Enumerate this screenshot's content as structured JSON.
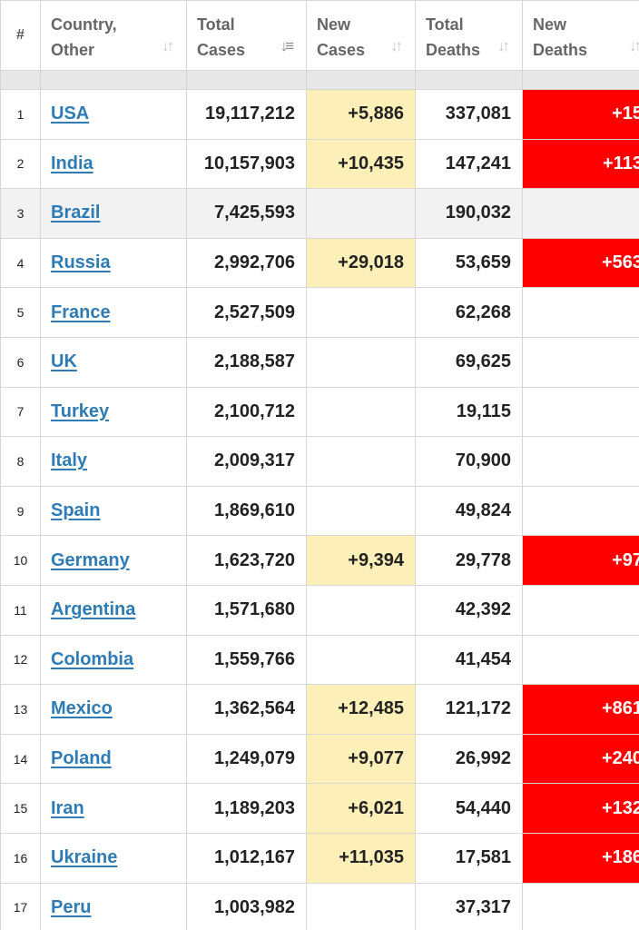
{
  "headers": {
    "num": "#",
    "country": [
      "Country,",
      "Other"
    ],
    "total_cases": [
      "Total",
      "Cases"
    ],
    "new_cases": [
      "New",
      "Cases"
    ],
    "total_deaths": [
      "Total",
      "Deaths"
    ],
    "new_deaths": [
      "New",
      "Deaths"
    ]
  },
  "colors": {
    "new_cases_highlight": "#fdefb8",
    "new_deaths_highlight": "#ff0000",
    "link": "#2e7bb6",
    "alt_row": "#f2f2f2"
  },
  "rows": [
    {
      "num": "1",
      "country": "USA",
      "total_cases": "19,117,212",
      "new_cases": "+5,886",
      "total_deaths": "337,081",
      "new_deaths": "+15"
    },
    {
      "num": "2",
      "country": "India",
      "total_cases": "10,157,903",
      "new_cases": "+10,435",
      "total_deaths": "147,241",
      "new_deaths": "+113"
    },
    {
      "num": "3",
      "country": "Brazil",
      "total_cases": "7,425,593",
      "new_cases": "",
      "total_deaths": "190,032",
      "new_deaths": ""
    },
    {
      "num": "4",
      "country": "Russia",
      "total_cases": "2,992,706",
      "new_cases": "+29,018",
      "total_deaths": "53,659",
      "new_deaths": "+563"
    },
    {
      "num": "5",
      "country": "France",
      "total_cases": "2,527,509",
      "new_cases": "",
      "total_deaths": "62,268",
      "new_deaths": ""
    },
    {
      "num": "6",
      "country": "UK",
      "total_cases": "2,188,587",
      "new_cases": "",
      "total_deaths": "69,625",
      "new_deaths": ""
    },
    {
      "num": "7",
      "country": "Turkey",
      "total_cases": "2,100,712",
      "new_cases": "",
      "total_deaths": "19,115",
      "new_deaths": ""
    },
    {
      "num": "8",
      "country": "Italy",
      "total_cases": "2,009,317",
      "new_cases": "",
      "total_deaths": "70,900",
      "new_deaths": ""
    },
    {
      "num": "9",
      "country": "Spain",
      "total_cases": "1,869,610",
      "new_cases": "",
      "total_deaths": "49,824",
      "new_deaths": ""
    },
    {
      "num": "10",
      "country": "Germany",
      "total_cases": "1,623,720",
      "new_cases": "+9,394",
      "total_deaths": "29,778",
      "new_deaths": "+97"
    },
    {
      "num": "11",
      "country": "Argentina",
      "total_cases": "1,571,680",
      "new_cases": "",
      "total_deaths": "42,392",
      "new_deaths": ""
    },
    {
      "num": "12",
      "country": "Colombia",
      "total_cases": "1,559,766",
      "new_cases": "",
      "total_deaths": "41,454",
      "new_deaths": ""
    },
    {
      "num": "13",
      "country": "Mexico",
      "total_cases": "1,362,564",
      "new_cases": "+12,485",
      "total_deaths": "121,172",
      "new_deaths": "+861"
    },
    {
      "num": "14",
      "country": "Poland",
      "total_cases": "1,249,079",
      "new_cases": "+9,077",
      "total_deaths": "26,992",
      "new_deaths": "+240"
    },
    {
      "num": "15",
      "country": "Iran",
      "total_cases": "1,189,203",
      "new_cases": "+6,021",
      "total_deaths": "54,440",
      "new_deaths": "+132"
    },
    {
      "num": "16",
      "country": "Ukraine",
      "total_cases": "1,012,167",
      "new_cases": "+11,035",
      "total_deaths": "17,581",
      "new_deaths": "+186"
    },
    {
      "num": "17",
      "country": "Peru",
      "total_cases": "1,003,982",
      "new_cases": "",
      "total_deaths": "37,317",
      "new_deaths": ""
    }
  ]
}
